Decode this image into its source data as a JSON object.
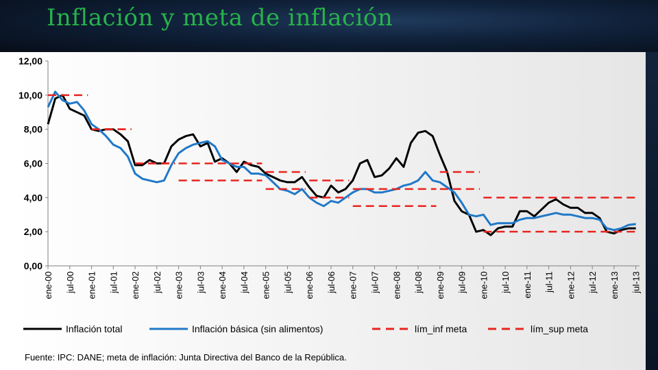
{
  "slide": {
    "title": "Inflación y meta de inflación"
  },
  "colors": {
    "total": "#000000",
    "basica": "#1f78c8",
    "meta": "#e8241f",
    "title": "#27b34a"
  },
  "chart_data": {
    "type": "line",
    "title": "",
    "xlabel": "",
    "ylabel": "",
    "ylim": [
      0,
      12
    ],
    "yticks": [
      "0,00",
      "2,00",
      "4,00",
      "6,00",
      "8,00",
      "10,00",
      "12,00"
    ],
    "xticks": [
      "ene-00",
      "jul-00",
      "ene-01",
      "jul-01",
      "ene-02",
      "jul-02",
      "ene-03",
      "jul-03",
      "ene-04",
      "jul-04",
      "ene-05",
      "jul-05",
      "ene-06",
      "jul-06",
      "ene-07",
      "jul-07",
      "ene-08",
      "jul-08",
      "ene-09",
      "jul-09",
      "ene-10",
      "jul-10",
      "ene-11",
      "jul-11",
      "ene-12",
      "jul-12",
      "ene-13",
      "jul-13"
    ],
    "series": [
      {
        "name": "Inflación total",
        "style": "solid",
        "color": "#000000",
        "points": [
          [
            0,
            8.3
          ],
          [
            2,
            9.8
          ],
          [
            4,
            10.0
          ],
          [
            6,
            9.2
          ],
          [
            8,
            9.0
          ],
          [
            10,
            8.8
          ],
          [
            12,
            8.0
          ],
          [
            14,
            7.9
          ],
          [
            16,
            8.0
          ],
          [
            18,
            8.0
          ],
          [
            20,
            7.7
          ],
          [
            22,
            7.3
          ],
          [
            24,
            5.9
          ],
          [
            26,
            5.9
          ],
          [
            28,
            6.2
          ],
          [
            30,
            6.0
          ],
          [
            32,
            6.0
          ],
          [
            34,
            7.0
          ],
          [
            36,
            7.4
          ],
          [
            38,
            7.6
          ],
          [
            40,
            7.7
          ],
          [
            42,
            7.0
          ],
          [
            44,
            7.2
          ],
          [
            46,
            6.1
          ],
          [
            48,
            6.3
          ],
          [
            50,
            6.0
          ],
          [
            52,
            5.5
          ],
          [
            54,
            6.1
          ],
          [
            56,
            5.9
          ],
          [
            58,
            5.8
          ],
          [
            60,
            5.4
          ],
          [
            62,
            5.2
          ],
          [
            64,
            5.0
          ],
          [
            66,
            4.9
          ],
          [
            68,
            4.9
          ],
          [
            70,
            5.2
          ],
          [
            72,
            4.6
          ],
          [
            74,
            4.1
          ],
          [
            76,
            4.0
          ],
          [
            78,
            4.7
          ],
          [
            80,
            4.3
          ],
          [
            82,
            4.5
          ],
          [
            84,
            5.0
          ],
          [
            86,
            6.0
          ],
          [
            88,
            6.2
          ],
          [
            90,
            5.2
          ],
          [
            92,
            5.3
          ],
          [
            94,
            5.7
          ],
          [
            96,
            6.3
          ],
          [
            98,
            5.8
          ],
          [
            100,
            7.2
          ],
          [
            102,
            7.8
          ],
          [
            104,
            7.9
          ],
          [
            106,
            7.6
          ],
          [
            108,
            6.5
          ],
          [
            110,
            5.5
          ],
          [
            112,
            3.8
          ],
          [
            114,
            3.2
          ],
          [
            116,
            3.0
          ],
          [
            118,
            2.0
          ],
          [
            120,
            2.1
          ],
          [
            122,
            1.8
          ],
          [
            124,
            2.2
          ],
          [
            126,
            2.3
          ],
          [
            128,
            2.3
          ],
          [
            130,
            3.2
          ],
          [
            132,
            3.2
          ],
          [
            134,
            2.9
          ],
          [
            136,
            3.3
          ],
          [
            138,
            3.7
          ],
          [
            140,
            3.9
          ],
          [
            142,
            3.6
          ],
          [
            144,
            3.4
          ],
          [
            146,
            3.4
          ],
          [
            148,
            3.1
          ],
          [
            150,
            3.1
          ],
          [
            152,
            2.8
          ],
          [
            154,
            2.0
          ],
          [
            156,
            1.9
          ],
          [
            158,
            2.1
          ],
          [
            160,
            2.2
          ],
          [
            162,
            2.2
          ]
        ]
      },
      {
        "name": "Inflación básica (sin alimentos)",
        "style": "solid",
        "color": "#1f78c8",
        "points": [
          [
            0,
            9.3
          ],
          [
            2,
            10.2
          ],
          [
            4,
            9.7
          ],
          [
            6,
            9.5
          ],
          [
            8,
            9.6
          ],
          [
            10,
            9.1
          ],
          [
            12,
            8.3
          ],
          [
            14,
            8.0
          ],
          [
            16,
            7.6
          ],
          [
            18,
            7.1
          ],
          [
            20,
            6.9
          ],
          [
            22,
            6.4
          ],
          [
            24,
            5.4
          ],
          [
            26,
            5.1
          ],
          [
            28,
            5.0
          ],
          [
            30,
            4.9
          ],
          [
            32,
            5.0
          ],
          [
            34,
            5.9
          ],
          [
            36,
            6.6
          ],
          [
            38,
            6.9
          ],
          [
            40,
            7.1
          ],
          [
            42,
            7.2
          ],
          [
            44,
            7.3
          ],
          [
            46,
            7.0
          ],
          [
            48,
            6.2
          ],
          [
            50,
            6.0
          ],
          [
            52,
            5.8
          ],
          [
            54,
            5.8
          ],
          [
            56,
            5.4
          ],
          [
            58,
            5.4
          ],
          [
            60,
            5.3
          ],
          [
            62,
            4.9
          ],
          [
            64,
            4.5
          ],
          [
            66,
            4.4
          ],
          [
            68,
            4.2
          ],
          [
            70,
            4.5
          ],
          [
            72,
            4.0
          ],
          [
            74,
            3.7
          ],
          [
            76,
            3.5
          ],
          [
            78,
            3.8
          ],
          [
            80,
            3.7
          ],
          [
            82,
            4.0
          ],
          [
            84,
            4.3
          ],
          [
            86,
            4.5
          ],
          [
            88,
            4.5
          ],
          [
            90,
            4.3
          ],
          [
            92,
            4.3
          ],
          [
            94,
            4.4
          ],
          [
            96,
            4.5
          ],
          [
            98,
            4.7
          ],
          [
            100,
            4.8
          ],
          [
            102,
            5.0
          ],
          [
            104,
            5.5
          ],
          [
            106,
            5.0
          ],
          [
            108,
            4.9
          ],
          [
            110,
            4.6
          ],
          [
            112,
            4.3
          ],
          [
            114,
            3.7
          ],
          [
            116,
            3.0
          ],
          [
            118,
            2.9
          ],
          [
            120,
            3.0
          ],
          [
            122,
            2.4
          ],
          [
            124,
            2.5
          ],
          [
            126,
            2.5
          ],
          [
            128,
            2.5
          ],
          [
            130,
            2.7
          ],
          [
            132,
            2.8
          ],
          [
            134,
            2.8
          ],
          [
            136,
            2.9
          ],
          [
            138,
            3.0
          ],
          [
            140,
            3.1
          ],
          [
            142,
            3.0
          ],
          [
            144,
            3.0
          ],
          [
            146,
            2.9
          ],
          [
            148,
            2.8
          ],
          [
            150,
            2.8
          ],
          [
            152,
            2.7
          ],
          [
            154,
            2.2
          ],
          [
            156,
            2.1
          ],
          [
            158,
            2.2
          ],
          [
            160,
            2.4
          ],
          [
            162,
            2.45
          ]
        ]
      },
      {
        "name": "lím_inf meta",
        "style": "dashed",
        "color": "#e8241f",
        "segments": [
          {
            "x": [
              12,
              23
            ],
            "y": 8.0
          },
          {
            "x": [
              24,
              35
            ],
            "y": 6.0
          },
          {
            "x": [
              36,
              59
            ],
            "y": 5.0
          },
          {
            "x": [
              60,
              71
            ],
            "y": 4.5
          },
          {
            "x": [
              72,
              83
            ],
            "y": 4.0
          },
          {
            "x": [
              84,
              107
            ],
            "y": 3.5
          },
          {
            "x": [
              108,
              119
            ],
            "y": 4.5
          },
          {
            "x": [
              120,
              163
            ],
            "y": 2.0
          }
        ]
      },
      {
        "name": "lím_sup meta",
        "style": "dashed",
        "color": "#e8241f",
        "segments": [
          {
            "x": [
              0,
              11
            ],
            "y": 10.0
          },
          {
            "x": [
              12,
              23
            ],
            "y": 8.0
          },
          {
            "x": [
              24,
              35
            ],
            "y": 6.0
          },
          {
            "x": [
              36,
              59
            ],
            "y": 6.0
          },
          {
            "x": [
              60,
              71
            ],
            "y": 5.5
          },
          {
            "x": [
              72,
              83
            ],
            "y": 5.0
          },
          {
            "x": [
              84,
              107
            ],
            "y": 4.5
          },
          {
            "x": [
              108,
              119
            ],
            "y": 5.5
          },
          {
            "x": [
              120,
              163
            ],
            "y": 4.0
          }
        ]
      }
    ],
    "legend": [
      {
        "label": "Inflación total",
        "style": "solid",
        "color": "#000000"
      },
      {
        "label": "Inflación básica (sin alimentos)",
        "style": "solid",
        "color": "#1f78c8"
      },
      {
        "label": "lím_inf meta",
        "style": "dashed",
        "color": "#e8241f"
      },
      {
        "label": "lím_sup meta",
        "style": "dashed",
        "color": "#e8241f"
      }
    ],
    "legend_position": "bottom",
    "grid": false
  },
  "source_note": "Fuente: IPC: DANE; meta de inflación: Junta Directiva del Banco de la República."
}
